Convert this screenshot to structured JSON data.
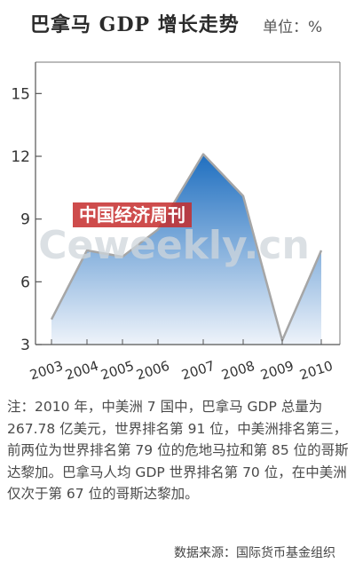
{
  "title": "巴拿马 GDP 增长走势",
  "unit_label": "单位：%",
  "chart_data": {
    "type": "area",
    "title": "巴拿马 GDP 增长走势",
    "x": [
      "2003",
      "2004",
      "2005",
      "2006",
      "2007",
      "2008",
      "2009",
      "2010"
    ],
    "series": [
      {
        "values": [
          4.2,
          7.5,
          7.2,
          8.5,
          12.1,
          10.1,
          3.2,
          7.5
        ]
      }
    ],
    "yticks": [
      3,
      6,
      9,
      12,
      15
    ],
    "ylim": [
      3,
      16.5
    ],
    "grid": false,
    "colors": {
      "area_top": "#1f6fc0",
      "area_bottom": "#eef3fa",
      "line": "#a6a6a6",
      "axis": "#555555"
    }
  },
  "watermark": {
    "chinese": "中国经济周刊",
    "brand": "Ceweekly.cn"
  },
  "note": "注：2010 年，中美洲 7 国中，巴拿马 GDP 总量为 267.78 亿美元，世界排名第 91 位，中美洲排名第三，前两位为世界排名第 79 位的危地马拉和第 85 位的哥斯达黎加。巴拿马人均 GDP 世界排名第 70 位，在中美洲仅次于第 67 位的哥斯达黎加。",
  "source": "数据来源：国际货币基金组织"
}
